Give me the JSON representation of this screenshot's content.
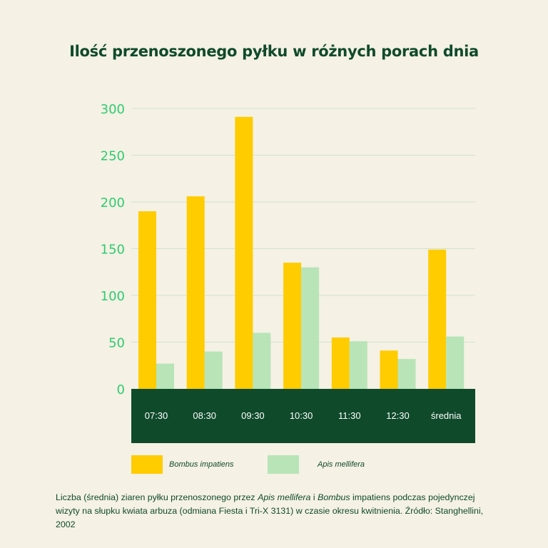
{
  "title": "Ilość przenoszonego pyłku w różnych porach dnia",
  "colors": {
    "background": "#f5f1e4",
    "bombus": "#ffcc00",
    "apis": "#b8e4b8",
    "axis_band": "#0f4a2b",
    "tick_text": "#2ecc71",
    "grid": "#cfe3cc"
  },
  "chart_data": {
    "type": "bar",
    "categories": [
      "07:30",
      "08:30",
      "09:30",
      "10:30",
      "11:30",
      "12:30",
      "średnia"
    ],
    "series": [
      {
        "name": "Bombus impatiens",
        "values": [
          190,
          206,
          291,
          135,
          55,
          41,
          149
        ]
      },
      {
        "name": "Apis mellifera",
        "values": [
          27,
          40,
          60,
          130,
          51,
          32,
          56
        ]
      }
    ],
    "ylim": [
      0,
      300
    ],
    "yticks": [
      0,
      50,
      100,
      150,
      200,
      250,
      300
    ],
    "grid": true,
    "legend_position": "bottom"
  },
  "legend": {
    "bombus_label": "Bombus impatiens",
    "apis_label": "Apis mellifera"
  },
  "caption": {
    "p1": "Liczba (średnia) ziaren pyłku przenoszonego przez ",
    "apis": "Apis mellifera",
    "p2": " i ",
    "bombus": "Bombus",
    "p3": " impatiens podczas pojedynczej wizyty na słupku kwiata arbuza (odmiana Fiesta i Tri-X 3131) w czasie okresu kwitnienia. Źródło: Stanghellini, 2002"
  }
}
